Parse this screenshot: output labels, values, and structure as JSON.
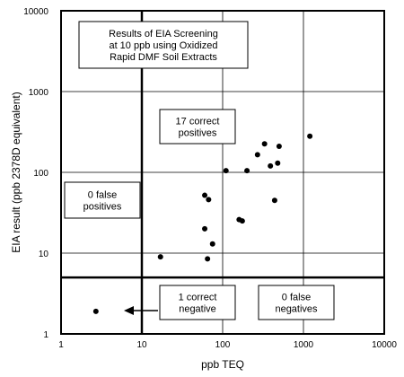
{
  "chart_data": {
    "type": "scatter",
    "xlabel": "ppb TEQ",
    "ylabel": "EIA result (ppb 2378D equivalent)",
    "xscale": "log",
    "yscale": "log",
    "xlim": [
      1,
      10000
    ],
    "ylim": [
      1,
      10000
    ],
    "grid": true,
    "x_ticks": [
      "1",
      "10",
      "100",
      "1000",
      "10000"
    ],
    "y_ticks": [
      "1",
      "10",
      "100",
      "1000",
      "10000"
    ],
    "threshold_x": 10,
    "threshold_y": 5,
    "points": [
      {
        "x": 2.7,
        "y": 1.9
      },
      {
        "x": 17,
        "y": 9
      },
      {
        "x": 65,
        "y": 8.5
      },
      {
        "x": 75,
        "y": 13
      },
      {
        "x": 60,
        "y": 20
      },
      {
        "x": 160,
        "y": 26
      },
      {
        "x": 175,
        "y": 25
      },
      {
        "x": 60,
        "y": 52
      },
      {
        "x": 67,
        "y": 46
      },
      {
        "x": 440,
        "y": 45
      },
      {
        "x": 110,
        "y": 105
      },
      {
        "x": 200,
        "y": 105
      },
      {
        "x": 270,
        "y": 165
      },
      {
        "x": 330,
        "y": 225
      },
      {
        "x": 390,
        "y": 120
      },
      {
        "x": 480,
        "y": 130
      },
      {
        "x": 500,
        "y": 210
      },
      {
        "x": 1200,
        "y": 280
      }
    ],
    "annotations": [
      {
        "lines": [
          "Results of EIA Screening",
          "at 10 ppb using Oxidized",
          "Rapid DMF Soil Extracts"
        ]
      },
      {
        "lines": [
          "17 correct",
          "positives"
        ]
      },
      {
        "lines": [
          "0  false",
          "positives"
        ]
      },
      {
        "lines": [
          "1  correct",
          "negative"
        ]
      },
      {
        "lines": [
          "0  false",
          "negatives"
        ]
      }
    ]
  }
}
